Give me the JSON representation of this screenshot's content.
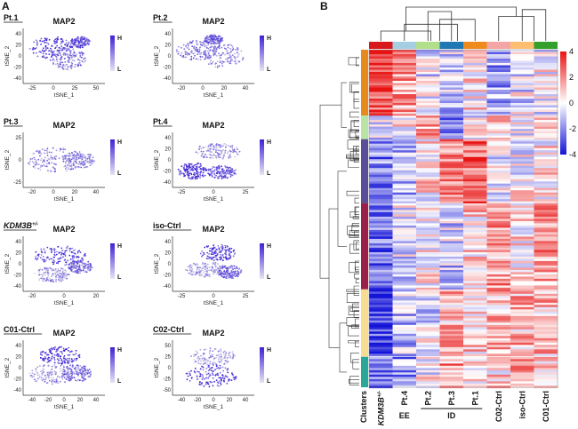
{
  "chart_data": [
    {
      "type": "scatter",
      "panel": "A",
      "plots": [
        {
          "sample": "Pt.1",
          "gene": "MAP2",
          "xlabel": "tSNE_1",
          "ylabel": "tSNE_2",
          "xticks": [
            "-25",
            "0",
            "25",
            "50"
          ],
          "yticks": [
            "40",
            "20",
            "0",
            "-20",
            "-40"
          ],
          "legend": {
            "high": "H",
            "low": "L"
          }
        },
        {
          "sample": "Pt.2",
          "gene": "MAP2",
          "xlabel": "tSNE_1",
          "ylabel": "tSNE_2",
          "xticks": [
            "-20",
            "0",
            "20",
            "40"
          ],
          "yticks": [
            "40",
            "20",
            "0",
            "-20",
            "-40"
          ],
          "legend": {
            "high": "H",
            "low": "L"
          }
        },
        {
          "sample": "Pt.3",
          "gene": "MAP2",
          "xlabel": "tSNE_1",
          "ylabel": "tSNE_2",
          "xticks": [
            "-20",
            "0",
            "20",
            "40"
          ],
          "yticks": [
            "25",
            "0",
            "-25"
          ],
          "legend": {
            "high": "H",
            "low": "L"
          }
        },
        {
          "sample": "Pt.4",
          "gene": "MAP2",
          "xlabel": "tSNE_1",
          "ylabel": "tSNE_2",
          "xticks": [
            "-25",
            "0",
            "25"
          ],
          "yticks": [
            "40",
            "20",
            "0",
            "-20",
            "-40"
          ],
          "legend": {
            "high": "H",
            "low": "L"
          }
        },
        {
          "sample": "KDM3B",
          "sample_sup": "+/-",
          "gene": "MAP2",
          "xlabel": "tSNE_1",
          "ylabel": "tSNE_2",
          "xticks": [
            "-20",
            "0",
            "20"
          ],
          "yticks": [
            "40",
            "20",
            "0",
            "-20",
            "-40"
          ],
          "legend": {
            "high": "H",
            "low": "L"
          }
        },
        {
          "sample": "iso-Ctrl",
          "gene": "MAP2",
          "xlabel": "tSNE_1",
          "ylabel": "tSNE_2",
          "xticks": [
            "-25",
            "0",
            "25"
          ],
          "yticks": [
            "40",
            "20",
            "0",
            "-20",
            "-40"
          ],
          "legend": {
            "high": "H",
            "low": "L"
          }
        },
        {
          "sample": "C01-Ctrl",
          "gene": "MAP2",
          "xlabel": "tSNE_1",
          "ylabel": "tSNE_2",
          "xticks": [
            "-40",
            "-20",
            "0",
            "20",
            "40"
          ],
          "yticks": [
            "40",
            "20",
            "0",
            "-20",
            "-40"
          ],
          "legend": {
            "high": "H",
            "low": "L"
          }
        },
        {
          "sample": "C02-Ctrl",
          "gene": "MAP2",
          "xlabel": "tSNE_1",
          "ylabel": "tSNE_2",
          "xticks": [
            "-40",
            "-20",
            "0",
            "20",
            "40"
          ],
          "yticks": [
            "50",
            "25",
            "0",
            "-25",
            "-50"
          ],
          "legend": {
            "high": "H",
            "low": "L"
          }
        }
      ]
    },
    {
      "type": "heatmap",
      "panel": "B",
      "columns": [
        {
          "label": "KDM3B",
          "sup": "+/-",
          "color": "#d7191c"
        },
        {
          "label": "Pt.4",
          "color": "#a6cee3"
        },
        {
          "label": "Pt.2",
          "color": "#b2df8a"
        },
        {
          "label": "Pt.3",
          "color": "#1f78b4"
        },
        {
          "label": "Pt.1",
          "color": "#f08a1c"
        },
        {
          "label": "C02-Ctrl",
          "color": "#f4a6a6"
        },
        {
          "label": "iso-Ctrl",
          "color": "#fdbf6f"
        },
        {
          "label": "C01-Ctrl",
          "color": "#33a02c"
        }
      ],
      "row_axis_label": "Clusters",
      "groups": [
        {
          "label": "EE",
          "columns": [
            "Pt.4"
          ]
        },
        {
          "label": "ID",
          "columns": [
            "Pt.2",
            "Pt.3",
            "Pt.1"
          ]
        }
      ],
      "clusters": [
        {
          "color": "#e8891e",
          "share": 0.195
        },
        {
          "color": "#b9e4a8",
          "share": 0.07
        },
        {
          "color": "#5a4e99",
          "share": 0.19
        },
        {
          "color": "#9b1e4b",
          "share": 0.255
        },
        {
          "color": "#f8dc92",
          "share": 0.2
        },
        {
          "color": "#2aa79b",
          "share": 0.09
        }
      ],
      "colorbar": {
        "min": -4,
        "max": 4,
        "ticks": [
          "4",
          "2",
          "0",
          "-2",
          "-4"
        ],
        "low_color": "#1414d8",
        "mid_color": "#ffffff",
        "high_color": "#e81414"
      }
    }
  ]
}
